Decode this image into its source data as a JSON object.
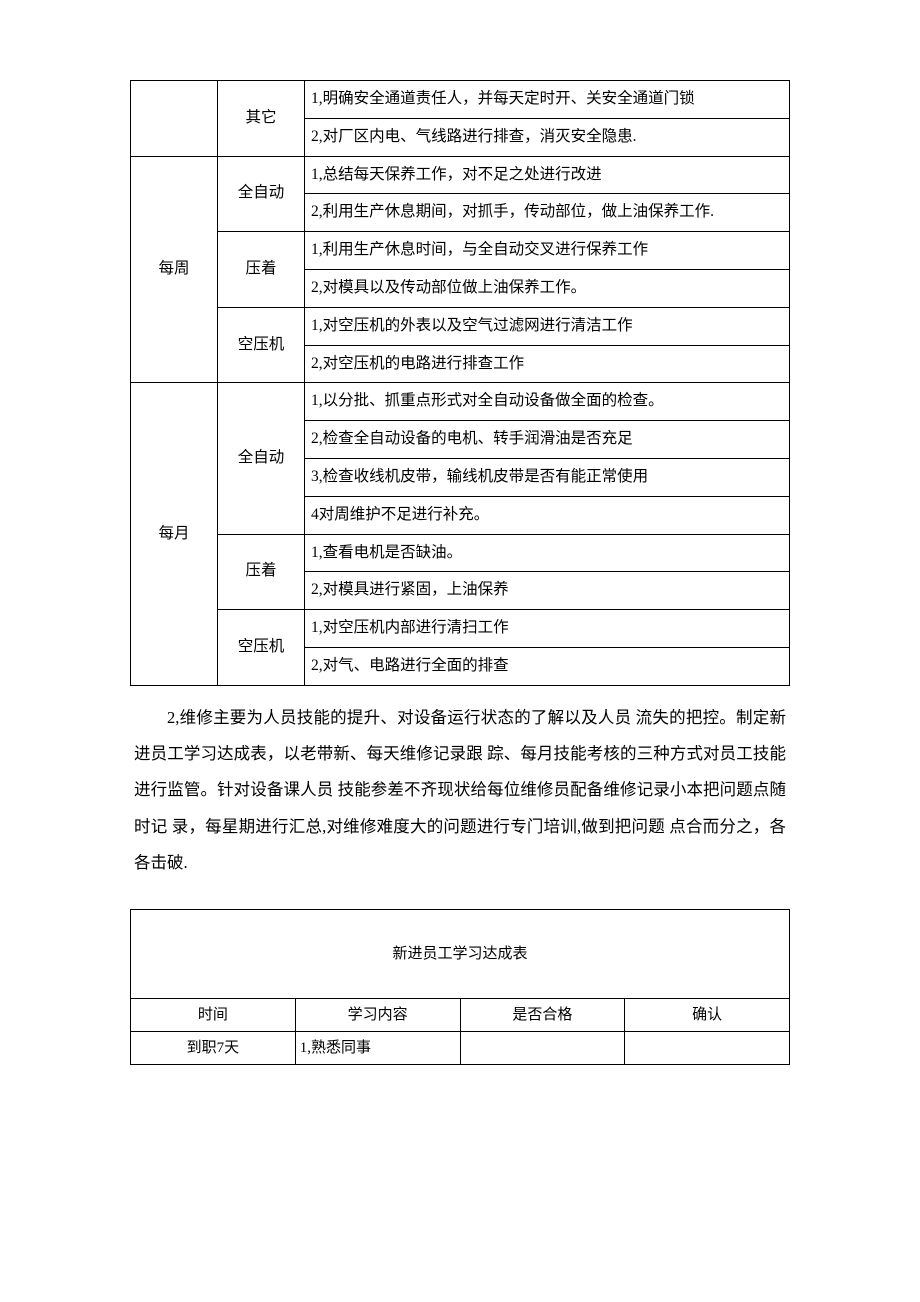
{
  "table1": {
    "rows": [
      {
        "period": "",
        "category": "其它",
        "task": "1,明确安全通道责任人，并每天定时开、关安全通道门锁"
      },
      {
        "period": "",
        "category": "",
        "task": "2,对厂区内电、气线路进行排查，消灭安全隐患."
      },
      {
        "period": "每周",
        "category": "全自动",
        "task": "1,总结每天保养工作，对不足之处进行改进"
      },
      {
        "period": "",
        "category": "",
        "task": "2,利用生产休息期间，对抓手，传动部位，做上油保养工作."
      },
      {
        "period": "",
        "category": "压着",
        "task": "1,利用生产休息时间，与全自动交叉进行保养工作"
      },
      {
        "period": "",
        "category": "",
        "task": "2,对模具以及传动部位做上油保养工作。"
      },
      {
        "period": "",
        "category": "空压机",
        "task": "1,对空压机的外表以及空气过滤网进行清洁工作"
      },
      {
        "period": "",
        "category": "",
        "task": "2,对空压机的电路进行排查工作"
      },
      {
        "period": "每月",
        "category": "全自动",
        "task": "1,以分批、抓重点形式对全自动设备做全面的检查。"
      },
      {
        "period": "",
        "category": "",
        "task": "2,检查全自动设备的电机、转手润滑油是否充足"
      },
      {
        "period": "",
        "category": "",
        "task": "3,检查收线机皮带，输线机皮带是否有能正常使用"
      },
      {
        "period": "",
        "category": "",
        "task": "4对周维护不足进行补充。"
      },
      {
        "period": "",
        "category": "压着",
        "task": "1,查看电机是否缺油。"
      },
      {
        "period": "",
        "category": "",
        "task": "2,对模具进行紧固，上油保养"
      },
      {
        "period": "",
        "category": "空压机",
        "task": "1,对空压机内部进行清扫工作"
      },
      {
        "period": "",
        "category": "",
        "task": "2,对气、电路进行全面的排查"
      }
    ],
    "category_spans": {
      "r0": 2,
      "r2": 2,
      "r4": 2,
      "r6": 2,
      "r8": 4,
      "r12": 2,
      "r14": 2
    },
    "period_spans": {
      "r0": 2,
      "r2": 6,
      "r8": 8
    },
    "period_first_border_top_hidden": true
  },
  "paragraph": "2,维修主要为人员技能的提升、对设备运行状态的了解以及人员 流失的把控。制定新进员工学习达成表，以老带新、每天维修记录跟 踪、每月技能考核的三种方式对员工技能进行监管。针对设备课人员 技能参差不齐现状给每位维修员配备维修记录小本把问题点随时记 录，每星期进行汇总,对维修难度大的问题进行专门培训,做到把问题 点合而分之，各各击破.",
  "table2": {
    "title": "新进员工学习达成表",
    "headers": {
      "time": "时间",
      "content": "学习内容",
      "pass": "是否合格",
      "confirm": "确认"
    },
    "row1": {
      "time": "到职7天",
      "content": "1,熟悉同事",
      "pass": "",
      "confirm": ""
    }
  }
}
